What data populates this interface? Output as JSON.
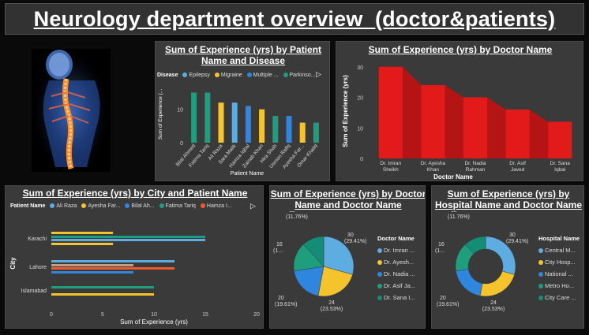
{
  "title": "Neurology department overview  (doctor&patients)",
  "colors": {
    "teal": "#1a9e86",
    "sky": "#5dade2",
    "yellow": "#f5c42c",
    "blue": "#2e86de",
    "orange": "#ef5b2c",
    "taupe": "#c0a080",
    "red": "#e21a1a",
    "darkred": "#a01010",
    "green": "#1f9e7e"
  },
  "panel1": {
    "title": "Sum of Experience (yrs) by Patient Name and Disease",
    "legend_title": "Disease",
    "legend": [
      "Epilepsy",
      "Migraine",
      "Multiple ...",
      "Parkinso..."
    ],
    "legend_colors": [
      "#5dade2",
      "#f5c42c",
      "#2e86de",
      "#1f9e7e"
    ],
    "ylabel": "Sum of Experience (...",
    "xlabel": "Patient Name",
    "chart_data": {
      "type": "bar",
      "categories": [
        "Bilal Ahmed",
        "Fatima Tariq",
        "Ali Raza",
        "Sara Malik",
        "Hamza Iqbal",
        "Zainab Khan",
        "Hira Shah",
        "Usman Rafiq",
        "Ayesha Far...",
        "Omar Khalid"
      ],
      "values": [
        15,
        15,
        12,
        12,
        11,
        10,
        8,
        8,
        6,
        6
      ],
      "colors": [
        "#1f9e7e",
        "#1f9e7e",
        "#f5c42c",
        "#5dade2",
        "#2e86de",
        "#f5c42c",
        "#1f9e7e",
        "#2e86de",
        "#f5c42c",
        "#1f9e7e"
      ],
      "yticks": [
        0,
        10
      ],
      "ylim": [
        0,
        17
      ]
    }
  },
  "panel2": {
    "title": "Sum of Experience (yrs) by Doctor Name",
    "ylabel": "Sum of Experience (yrs)",
    "xlabel": "Doctor Name",
    "chart_data": {
      "type": "bar",
      "categories": [
        "Dr. Imran Sheikh",
        "Dr. Ayesha Khan",
        "Dr. Nadia Rahman",
        "Dr. Asif Javed",
        "Dr. Sana Iqbal"
      ],
      "values": [
        30,
        24,
        20,
        16,
        12
      ],
      "yticks": [
        0,
        10,
        20,
        30
      ],
      "ylim": [
        0,
        32
      ]
    }
  },
  "panel3": {
    "title": "Sum of Experience (yrs) by City and Patient Name",
    "legend_title": "Patient Name",
    "legend": [
      "Ali Raza",
      "Ayesha Far...",
      "Bilal Ah...",
      "Fatima Tariq",
      "Hamza I..."
    ],
    "legend_colors": [
      "#5dade2",
      "#f5c42c",
      "#2e86de",
      "#1f9e7e",
      "#ef5b2c"
    ],
    "ylabel": "City",
    "xlabel": "Sum of Experience (yrs)",
    "chart_data": {
      "type": "bar",
      "categories": [
        "Karachi",
        "Lahore",
        "Islamabad"
      ],
      "xticks": [
        0,
        5,
        10,
        15,
        20
      ],
      "xlim": [
        0,
        20
      ],
      "bars": [
        [
          {
            "value": 6,
            "color": "#f5c42c"
          },
          {
            "value": 15,
            "color": "#1f9e7e"
          },
          {
            "value": 15,
            "color": "#5dade2"
          },
          {
            "value": 6,
            "color": "#f5c42c"
          }
        ],
        [
          {
            "value": 12,
            "color": "#5dade2"
          },
          {
            "value": 8,
            "color": "#c0a080"
          },
          {
            "value": 12,
            "color": "#ef5b2c"
          },
          {
            "value": 8,
            "color": "#2e86de"
          }
        ],
        [
          {
            "value": 10,
            "color": "#1f9e7e"
          },
          {
            "value": 10,
            "color": "#f5c42c"
          }
        ]
      ]
    }
  },
  "panel4": {
    "title": "Sum of Experience (yrs) by Doctor Name and Doctor Name",
    "legend_title": "Doctor Name",
    "legend": [
      "Dr. Imran ...",
      "Dr. Ayesh...",
      "Dr. Nadia ...",
      "Dr. Asif Ja...",
      "Dr. Sana I..."
    ],
    "labels": {
      "a": "30",
      "a2": "(29.41%)",
      "b": "24",
      "b2": "(23.53%)",
      "c": "20",
      "c2": "(19.61%)",
      "d": "16",
      "d2": "(1...",
      "e": "12",
      "e2": "(11.76%)"
    },
    "chart_data": {
      "type": "pie",
      "labels": [
        "Dr. Imran ...",
        "Dr. Ayesh...",
        "Dr. Nadia ...",
        "Dr. Asif Ja...",
        "Dr. Sana I..."
      ],
      "values": [
        30,
        24,
        20,
        16,
        12
      ],
      "colors": [
        "#5dade2",
        "#f5c42c",
        "#2e86de",
        "#1f9e7e",
        "#138d75"
      ]
    }
  },
  "panel5": {
    "title": "Sum of Experience (yrs) by Hospital Name and Doctor Name",
    "legend_title": "Hospital Name",
    "legend": [
      "Central M...",
      "City Hosp...",
      "National ...",
      "Metro Ho...",
      "City Care ..."
    ],
    "labels": {
      "a": "30",
      "a2": "(29.41%)",
      "b": "24",
      "b2": "(23.53%)",
      "c": "20",
      "c2": "(19.61%)",
      "d": "16",
      "d2": "(1...",
      "e": "12",
      "e2": "(11.76%)"
    },
    "chart_data": {
      "type": "pie",
      "labels": [
        "Central M...",
        "City Hosp...",
        "National ...",
        "Metro Ho...",
        "City Care ..."
      ],
      "values": [
        30,
        24,
        20,
        16,
        12
      ],
      "colors": [
        "#5dade2",
        "#f5c42c",
        "#2e86de",
        "#1f9e7e",
        "#138d75"
      ]
    }
  }
}
